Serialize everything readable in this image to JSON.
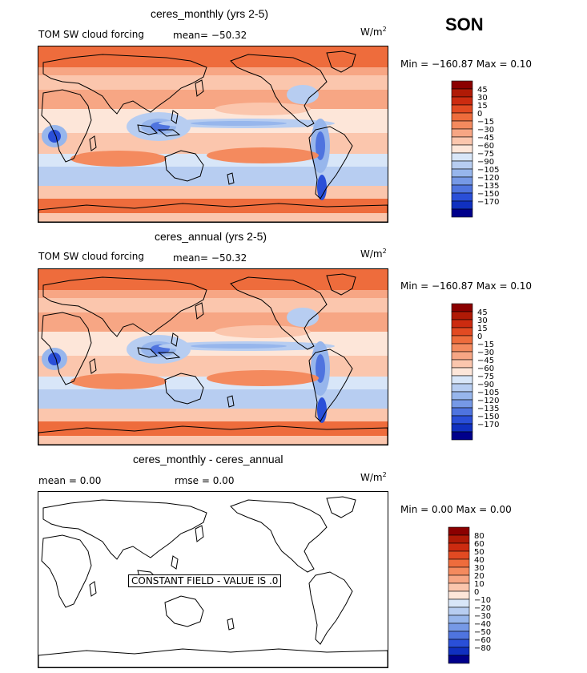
{
  "season": "SON",
  "panels": [
    {
      "title": "ceres_monthly (yrs 2-5)",
      "variable": "TOM SW cloud forcing",
      "stat_text": "mean=  −50.32",
      "units_base": "W/m",
      "units_exp": "2",
      "minmax_text": "Min = −160.87  Max =    0.10",
      "levels": [
        "45",
        "30",
        "15",
        "0",
        "−15",
        "−30",
        "−45",
        "−60",
        "−75",
        "−90",
        "−105",
        "−120",
        "−135",
        "−150",
        "−170"
      ],
      "colors": [
        "#8b0000",
        "#b01a06",
        "#cc2b10",
        "#e24a22",
        "#ee6c3c",
        "#f48a5e",
        "#f7a684",
        "#fbc6ad",
        "#fde6d9",
        "#d8e6f8",
        "#b7cdf1",
        "#97b6ec",
        "#7699e6",
        "#4f74df",
        "#2a4fd8",
        "#1030c0",
        "#00008b"
      ]
    },
    {
      "title": "ceres_annual (yrs 2-5)",
      "variable": "TOM SW cloud forcing",
      "stat_text": "mean=  −50.32",
      "units_base": "W/m",
      "units_exp": "2",
      "minmax_text": "Min = −160.87  Max =    0.10",
      "levels": [
        "45",
        "30",
        "15",
        "0",
        "−15",
        "−30",
        "−45",
        "−60",
        "−75",
        "−90",
        "−105",
        "−120",
        "−135",
        "−150",
        "−170"
      ],
      "colors": [
        "#8b0000",
        "#b01a06",
        "#cc2b10",
        "#e24a22",
        "#ee6c3c",
        "#f48a5e",
        "#f7a684",
        "#fbc6ad",
        "#fde6d9",
        "#d8e6f8",
        "#b7cdf1",
        "#97b6ec",
        "#7699e6",
        "#4f74df",
        "#2a4fd8",
        "#1030c0",
        "#00008b"
      ]
    },
    {
      "title": "ceres_monthly - ceres_annual",
      "mean_text": "mean =    0.00",
      "rmse_text": "rmse =    0.00",
      "units_base": "W/m",
      "units_exp": "2",
      "minmax_text": "Min =   0.00 Max =    0.00",
      "constant_text": "CONSTANT FIELD - VALUE IS .0",
      "levels": [
        "80",
        "60",
        "50",
        "40",
        "30",
        "20",
        "10",
        "0",
        "−10",
        "−20",
        "−30",
        "−40",
        "−50",
        "−60",
        "−80"
      ],
      "colors": [
        "#8b0000",
        "#b01a06",
        "#cc2b10",
        "#e24a22",
        "#ee6c3c",
        "#f48a5e",
        "#f7a684",
        "#fbc6ad",
        "#fde6d9",
        "#d8e6f8",
        "#b7cdf1",
        "#97b6ec",
        "#7699e6",
        "#4f74df",
        "#2a4fd8",
        "#1030c0",
        "#00008b"
      ]
    }
  ],
  "chart_data": [
    {
      "type": "heatmap",
      "title": "ceres_monthly (yrs 2-5)",
      "subtitle": "TOM SW cloud forcing",
      "units": "W/m2",
      "mean": -50.32,
      "min": -160.87,
      "max": 0.1,
      "contour_levels": [
        45,
        30,
        15,
        0,
        -15,
        -30,
        -45,
        -60,
        -75,
        -90,
        -105,
        -120,
        -135,
        -150,
        -170
      ]
    },
    {
      "type": "heatmap",
      "title": "ceres_annual (yrs 2-5)",
      "subtitle": "TOM SW cloud forcing",
      "units": "W/m2",
      "mean": -50.32,
      "min": -160.87,
      "max": 0.1,
      "contour_levels": [
        45,
        30,
        15,
        0,
        -15,
        -30,
        -45,
        -60,
        -75,
        -90,
        -105,
        -120,
        -135,
        -150,
        -170
      ]
    },
    {
      "type": "heatmap",
      "title": "ceres_monthly - ceres_annual",
      "units": "W/m2",
      "mean": 0.0,
      "rmse": 0.0,
      "min": 0.0,
      "max": 0.0,
      "constant_value": 0.0,
      "contour_levels": [
        80,
        60,
        50,
        40,
        30,
        20,
        10,
        0,
        -10,
        -20,
        -30,
        -40,
        -50,
        -60,
        -80
      ]
    }
  ]
}
